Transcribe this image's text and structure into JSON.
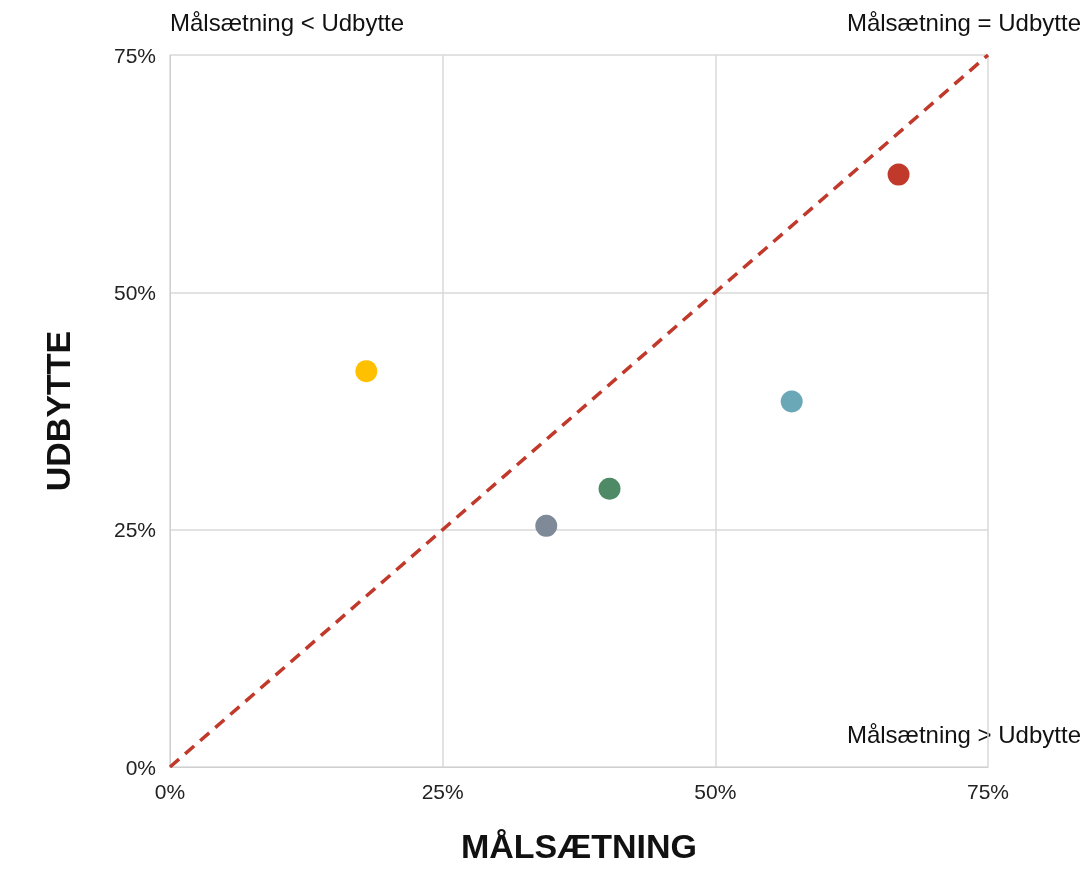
{
  "chart_data": {
    "type": "scatter",
    "xlabel": "MÅLSÆTNING",
    "ylabel": "UDBYTTE",
    "annotations": [
      "Målsætning < Udbytte",
      "Målsætning = Udbytte",
      "Målsætning > Udbytte"
    ],
    "series": [
      {
        "type": "scatter",
        "x": [
          18.0,
          34.5,
          40.3,
          57.0,
          66.8
        ],
        "values": [
          41.7,
          25.4,
          29.3,
          38.5,
          62.4
        ],
        "colors": [
          "#ffc000",
          "#7f8a99",
          "#4e8a66",
          "#6aa8b8",
          "#c0392b"
        ],
        "marker": "circle"
      },
      {
        "type": "line",
        "x": [
          0,
          75
        ],
        "values": [
          0,
          75
        ],
        "color": "#c0392b",
        "line_style": "dashed",
        "marker": "none"
      }
    ],
    "xlim": [
      0,
      75
    ],
    "ylim": [
      0,
      75
    ],
    "xticks": [
      {
        "value": 0,
        "label": "0%"
      },
      {
        "value": 25,
        "label": "25%"
      },
      {
        "value": 50,
        "label": "50%"
      },
      {
        "value": 75,
        "label": "75%"
      }
    ],
    "yticks": [
      {
        "value": 0,
        "label": "0%"
      },
      {
        "value": 25,
        "label": "25%"
      },
      {
        "value": 50,
        "label": "50%"
      },
      {
        "value": 75,
        "label": "75%"
      }
    ],
    "grid": true
  }
}
